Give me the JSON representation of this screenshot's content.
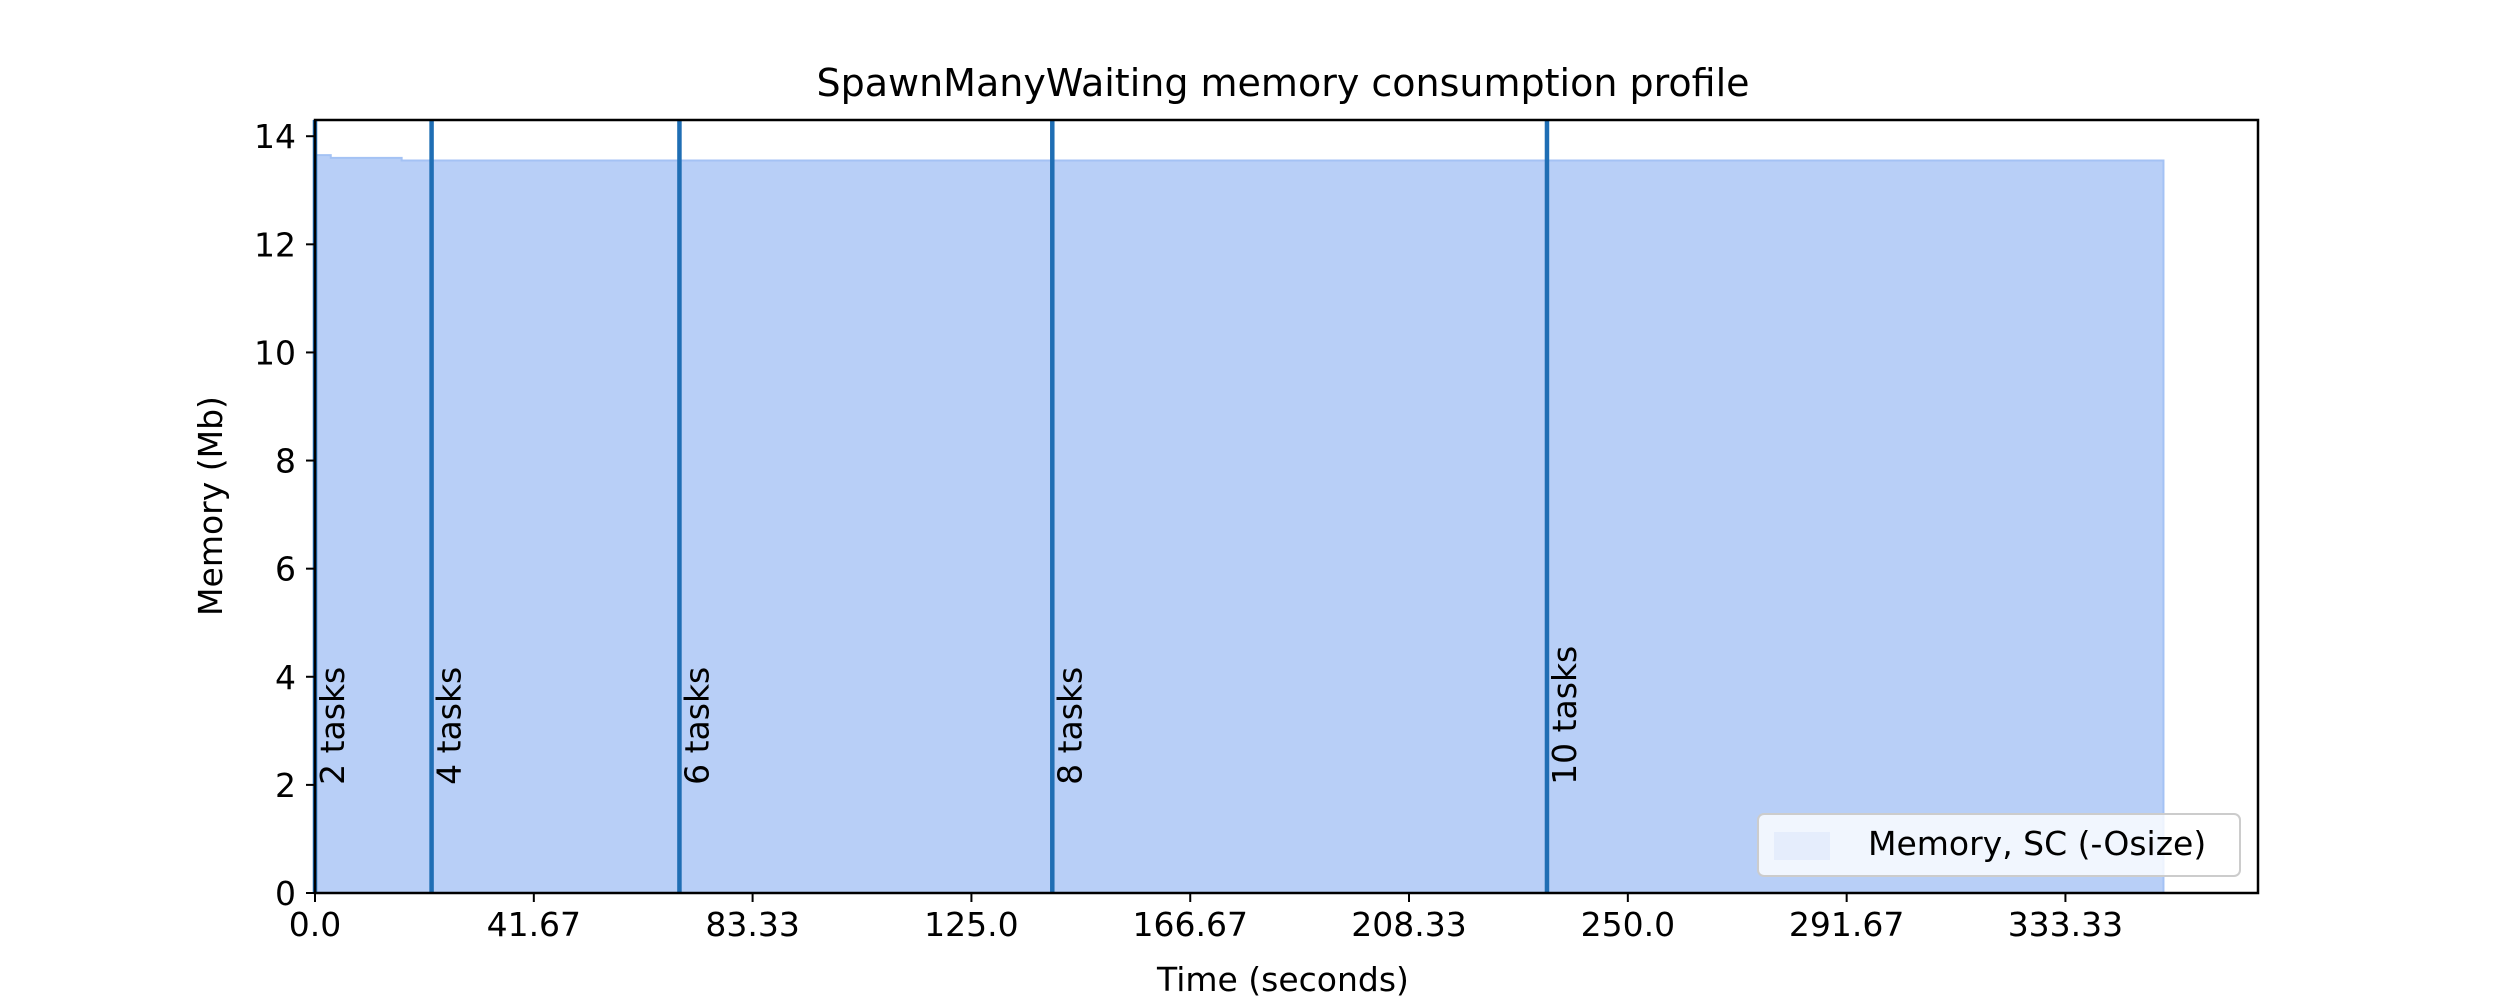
{
  "chart_data": {
    "type": "area",
    "title": "SpawnManyWaiting memory consumption profile",
    "xlabel": "Time (seconds)",
    "ylabel": "Memory (Mb)",
    "xlim": [
      0,
      370
    ],
    "ylim": [
      0,
      14.3
    ],
    "x_ticks": [
      0,
      41.67,
      83.33,
      125.0,
      166.67,
      208.33,
      250.0,
      291.67,
      333.33
    ],
    "x_tick_labels": [
      "0.0",
      "41.67",
      "83.33",
      "125.0",
      "166.67",
      "208.33",
      "250.0",
      "291.67",
      "333.33"
    ],
    "y_ticks": [
      0,
      2,
      4,
      6,
      8,
      10,
      12,
      14
    ],
    "y_tick_labels": [
      "0",
      "2",
      "4",
      "6",
      "8",
      "10",
      "12",
      "14"
    ],
    "series": [
      {
        "name": "Memory, SC (-Osize)",
        "color": "#a4c2f4",
        "fill_color": "#b8cff7",
        "x": [
          0,
          3,
          3,
          16.5,
          16.5,
          352
        ],
        "values": [
          13.65,
          13.65,
          13.6,
          13.6,
          13.55,
          13.55
        ]
      }
    ],
    "vlines": [
      {
        "x": 0,
        "label": "2 tasks"
      },
      {
        "x": 22.2,
        "label": "4 tasks"
      },
      {
        "x": 69.4,
        "label": "6 tasks"
      },
      {
        "x": 140.4,
        "label": "8 tasks"
      },
      {
        "x": 234.6,
        "label": "10 tasks"
      }
    ],
    "vline_label_y": 2,
    "vline_color": "#1f6eb4",
    "legend": {
      "position": "lower-right",
      "label": "Memory, SC (-Osize)"
    }
  }
}
